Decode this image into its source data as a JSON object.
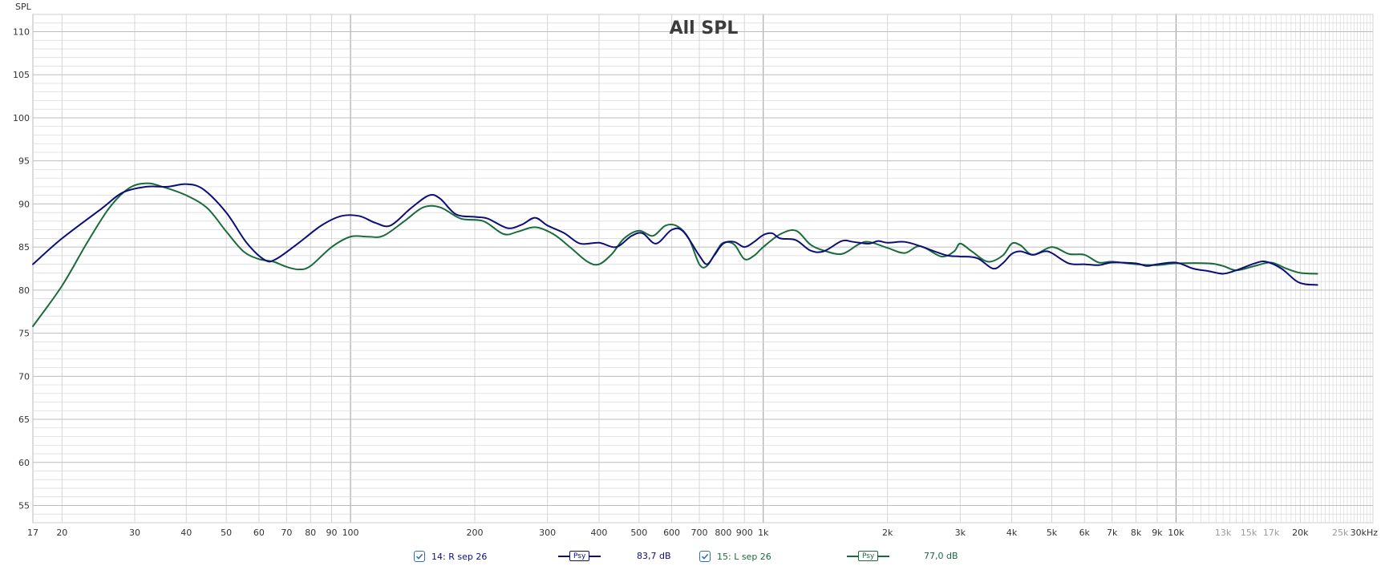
{
  "chart_data": {
    "type": "line",
    "title": "All SPL",
    "ylabel": "SPL",
    "xunit": "kHz",
    "xscale": "log",
    "xlim": [
      17,
      30000
    ],
    "ylim": [
      53,
      112
    ],
    "grid": true,
    "y_ticks": [
      "55",
      "60",
      "65",
      "70",
      "75",
      "80",
      "85",
      "90",
      "95",
      "100",
      "105",
      "110"
    ],
    "x_tick_labels": [
      {
        "f": 17,
        "label": "17"
      },
      {
        "f": 20,
        "label": "20"
      },
      {
        "f": 30,
        "label": "30"
      },
      {
        "f": 40,
        "label": "40"
      },
      {
        "f": 50,
        "label": "50"
      },
      {
        "f": 60,
        "label": "60"
      },
      {
        "f": 70,
        "label": "70"
      },
      {
        "f": 80,
        "label": "80"
      },
      {
        "f": 90,
        "label": "90"
      },
      {
        "f": 100,
        "label": "100"
      },
      {
        "f": 200,
        "label": "200"
      },
      {
        "f": 300,
        "label": "300"
      },
      {
        "f": 400,
        "label": "400"
      },
      {
        "f": 500,
        "label": "500"
      },
      {
        "f": 600,
        "label": "600"
      },
      {
        "f": 700,
        "label": "700"
      },
      {
        "f": 800,
        "label": "800"
      },
      {
        "f": 900,
        "label": "900"
      },
      {
        "f": 1000,
        "label": "1k"
      },
      {
        "f": 2000,
        "label": "2k"
      },
      {
        "f": 3000,
        "label": "3k"
      },
      {
        "f": 4000,
        "label": "4k"
      },
      {
        "f": 5000,
        "label": "5k"
      },
      {
        "f": 6000,
        "label": "6k"
      },
      {
        "f": 7000,
        "label": "7k"
      },
      {
        "f": 8000,
        "label": "8k"
      },
      {
        "f": 9000,
        "label": "9k"
      },
      {
        "f": 10000,
        "label": "10k"
      },
      {
        "f": 13000,
        "label": "13k",
        "faint": true
      },
      {
        "f": 15000,
        "label": "15k",
        "faint": true
      },
      {
        "f": 17000,
        "label": "17k",
        "faint": true
      },
      {
        "f": 20000,
        "label": "20k"
      },
      {
        "f": 25000,
        "label": "25k",
        "faint": true
      },
      {
        "f": 30000,
        "label": "30kHz"
      }
    ],
    "series": [
      {
        "name": "14: R sep 26",
        "color": "#0d0d7a",
        "points": [
          [
            17,
            83.0
          ],
          [
            20,
            86.0
          ],
          [
            25,
            89.5
          ],
          [
            28,
            91.3
          ],
          [
            32,
            92.0
          ],
          [
            36,
            92.0
          ],
          [
            40,
            92.3
          ],
          [
            44,
            91.7
          ],
          [
            50,
            89.0
          ],
          [
            56,
            85.5
          ],
          [
            62,
            83.5
          ],
          [
            66,
            83.6
          ],
          [
            75,
            85.5
          ],
          [
            85,
            87.5
          ],
          [
            95,
            88.6
          ],
          [
            105,
            88.6
          ],
          [
            115,
            87.8
          ],
          [
            125,
            87.5
          ],
          [
            140,
            89.5
          ],
          [
            155,
            91.0
          ],
          [
            165,
            90.6
          ],
          [
            180,
            88.8
          ],
          [
            200,
            88.5
          ],
          [
            215,
            88.3
          ],
          [
            240,
            87.2
          ],
          [
            260,
            87.6
          ],
          [
            280,
            88.4
          ],
          [
            300,
            87.5
          ],
          [
            330,
            86.6
          ],
          [
            360,
            85.4
          ],
          [
            400,
            85.5
          ],
          [
            440,
            85.0
          ],
          [
            480,
            86.3
          ],
          [
            510,
            86.6
          ],
          [
            550,
            85.4
          ],
          [
            600,
            87.0
          ],
          [
            640,
            86.8
          ],
          [
            700,
            84.0
          ],
          [
            730,
            83.0
          ],
          [
            760,
            84.0
          ],
          [
            800,
            85.4
          ],
          [
            850,
            85.6
          ],
          [
            900,
            85.0
          ],
          [
            950,
            85.6
          ],
          [
            1000,
            86.4
          ],
          [
            1050,
            86.6
          ],
          [
            1100,
            86.0
          ],
          [
            1200,
            85.8
          ],
          [
            1300,
            84.6
          ],
          [
            1400,
            84.5
          ],
          [
            1550,
            85.7
          ],
          [
            1650,
            85.6
          ],
          [
            1800,
            85.4
          ],
          [
            1900,
            85.7
          ],
          [
            2000,
            85.5
          ],
          [
            2200,
            85.6
          ],
          [
            2400,
            85.1
          ],
          [
            2600,
            84.5
          ],
          [
            2800,
            84.0
          ],
          [
            3000,
            83.9
          ],
          [
            3300,
            83.7
          ],
          [
            3600,
            82.5
          ],
          [
            3800,
            83.1
          ],
          [
            4000,
            84.2
          ],
          [
            4200,
            84.5
          ],
          [
            4500,
            84.1
          ],
          [
            4800,
            84.5
          ],
          [
            5000,
            84.3
          ],
          [
            5500,
            83.1
          ],
          [
            6000,
            83.0
          ],
          [
            6500,
            82.9
          ],
          [
            7000,
            83.2
          ],
          [
            8000,
            83.1
          ],
          [
            8500,
            82.8
          ],
          [
            9000,
            83.0
          ],
          [
            10000,
            83.2
          ],
          [
            11000,
            82.5
          ],
          [
            12000,
            82.2
          ],
          [
            13000,
            81.9
          ],
          [
            14000,
            82.3
          ],
          [
            15500,
            83.1
          ],
          [
            16500,
            83.3
          ],
          [
            18000,
            82.5
          ],
          [
            19500,
            81.1
          ],
          [
            20500,
            80.7
          ],
          [
            22000,
            80.6
          ]
        ]
      },
      {
        "name": "15: L sep 26",
        "color": "#1a6b3c",
        "points": [
          [
            17,
            75.8
          ],
          [
            20,
            80.5
          ],
          [
            23,
            85.5
          ],
          [
            26,
            89.5
          ],
          [
            29,
            91.8
          ],
          [
            32,
            92.4
          ],
          [
            35,
            92.0
          ],
          [
            40,
            91.0
          ],
          [
            45,
            89.5
          ],
          [
            50,
            86.8
          ],
          [
            55,
            84.5
          ],
          [
            60,
            83.6
          ],
          [
            65,
            83.3
          ],
          [
            70,
            82.7
          ],
          [
            75,
            82.4
          ],
          [
            80,
            82.8
          ],
          [
            90,
            85.0
          ],
          [
            100,
            86.2
          ],
          [
            110,
            86.2
          ],
          [
            120,
            86.3
          ],
          [
            135,
            88.0
          ],
          [
            150,
            89.6
          ],
          [
            165,
            89.6
          ],
          [
            185,
            88.3
          ],
          [
            210,
            88.0
          ],
          [
            235,
            86.5
          ],
          [
            255,
            86.8
          ],
          [
            280,
            87.3
          ],
          [
            310,
            86.5
          ],
          [
            340,
            85.0
          ],
          [
            375,
            83.3
          ],
          [
            400,
            83.0
          ],
          [
            430,
            84.2
          ],
          [
            460,
            86.0
          ],
          [
            500,
            86.9
          ],
          [
            540,
            86.3
          ],
          [
            580,
            87.5
          ],
          [
            620,
            87.4
          ],
          [
            660,
            86.0
          ],
          [
            700,
            83.0
          ],
          [
            730,
            82.8
          ],
          [
            770,
            84.5
          ],
          [
            800,
            85.5
          ],
          [
            850,
            85.3
          ],
          [
            900,
            83.6
          ],
          [
            950,
            84.0
          ],
          [
            1000,
            85.0
          ],
          [
            1100,
            86.5
          ],
          [
            1200,
            86.9
          ],
          [
            1300,
            85.3
          ],
          [
            1400,
            84.6
          ],
          [
            1550,
            84.2
          ],
          [
            1700,
            85.3
          ],
          [
            1800,
            85.6
          ],
          [
            2000,
            84.9
          ],
          [
            2200,
            84.3
          ],
          [
            2400,
            85.1
          ],
          [
            2700,
            83.9
          ],
          [
            2900,
            84.5
          ],
          [
            3000,
            85.4
          ],
          [
            3200,
            84.5
          ],
          [
            3500,
            83.3
          ],
          [
            3800,
            84.0
          ],
          [
            4000,
            85.4
          ],
          [
            4200,
            85.2
          ],
          [
            4500,
            84.1
          ],
          [
            5000,
            85.0
          ],
          [
            5500,
            84.2
          ],
          [
            6000,
            84.1
          ],
          [
            6500,
            83.2
          ],
          [
            7000,
            83.3
          ],
          [
            8000,
            83.0
          ],
          [
            9000,
            82.9
          ],
          [
            10000,
            83.1
          ],
          [
            12000,
            83.1
          ],
          [
            13000,
            82.8
          ],
          [
            14000,
            82.3
          ],
          [
            15500,
            82.8
          ],
          [
            17000,
            83.2
          ],
          [
            18500,
            82.5
          ],
          [
            20000,
            82.0
          ],
          [
            22000,
            81.9
          ]
        ]
      }
    ]
  },
  "legend": {
    "items": [
      {
        "checkbox_label": "14: R sep 26",
        "psy_label": "Psy",
        "value": "83,7 dB",
        "color": "#0d0d7a"
      },
      {
        "checkbox_label": "15: L sep 26",
        "psy_label": "Psy",
        "value": "77,0 dB",
        "color": "#1a6b3c"
      }
    ]
  },
  "colors": {
    "grid_minor": "#d6d6d6",
    "grid_major": "#9a9a9a",
    "axis_text": "#333333",
    "faint_text": "#9a9a9a",
    "checkbox": "#2e6fb5"
  }
}
